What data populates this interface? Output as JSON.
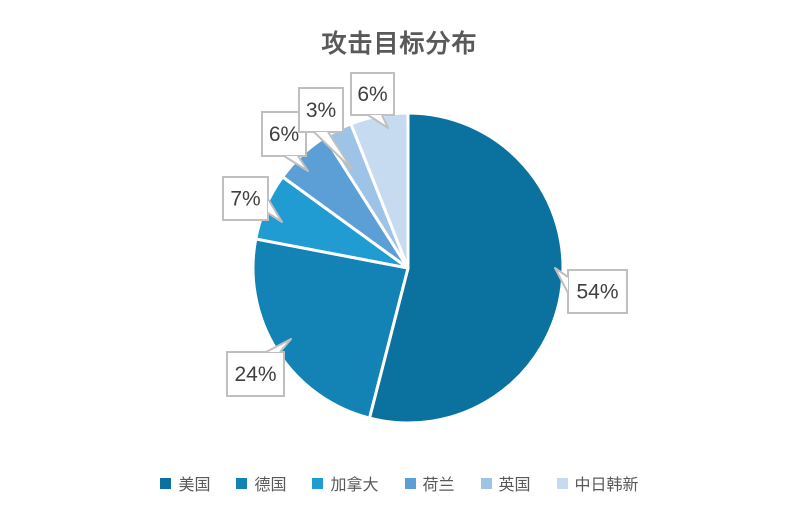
{
  "chart_data": {
    "type": "pie",
    "title": "攻击目标分布",
    "categories": [
      "美国",
      "德国",
      "加拿大",
      "荷兰",
      "英国",
      "中日韩新"
    ],
    "values": [
      54,
      24,
      7,
      6,
      3,
      6
    ],
    "unit": "%",
    "data_labels": [
      "54%",
      "24%",
      "7%",
      "6%",
      "3%",
      "6%"
    ],
    "colors": [
      "#0B72A0",
      "#1283B4",
      "#219CD3",
      "#5C9FD6",
      "#9DC3E6",
      "#C6DBEF"
    ],
    "start_angle_deg": 0,
    "legend_position": "bottom",
    "title_color": "#595959",
    "label_color": "#404040",
    "legend_text_color": "#595959",
    "callout_border_color": "#BFBFBF",
    "slice_separator_color": "#FFFFFF"
  }
}
